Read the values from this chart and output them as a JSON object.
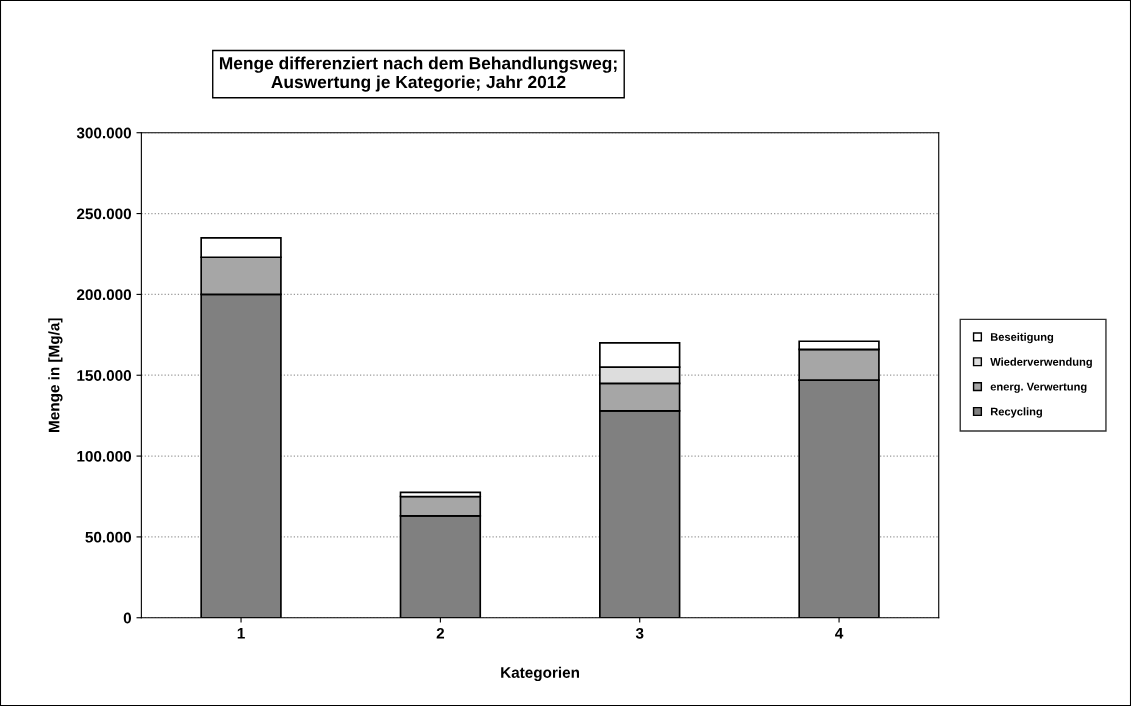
{
  "chart_data": {
    "type": "bar",
    "stacked": true,
    "title": "Menge differenziert nach dem Behandlungsweg;\nAuswertung je Kategorie; Jahr 2012",
    "xlabel": "Kategorien",
    "ylabel": "Menge in [Mg/a]",
    "categories": [
      "1",
      "2",
      "3",
      "4"
    ],
    "series": [
      {
        "name": "Recycling",
        "color": "#808080",
        "values": [
          200000,
          63000,
          128000,
          147000
        ]
      },
      {
        "name": "energ. Verwertung",
        "color": "#a6a6a6",
        "values": [
          23000,
          12000,
          17000,
          19000
        ]
      },
      {
        "name": "Wiederverwendung",
        "color": "#dddddd",
        "values": [
          null,
          null,
          10000,
          null
        ]
      },
      {
        "name": "Beseitigung",
        "color": "#ffffff",
        "values": [
          12000,
          2500,
          15000,
          5000
        ]
      }
    ],
    "ylim": [
      0,
      300000
    ],
    "yticks": [
      0,
      {
        "value": 50000,
        "label": "50.000"
      },
      {
        "value": 100000,
        "label": "100.000"
      },
      {
        "value": 150000,
        "label": "150.000"
      },
      {
        "value": 200000,
        "label": "200.000"
      },
      {
        "value": 250000,
        "label": "250.000"
      },
      {
        "value": 300000,
        "label": "300.000"
      }
    ],
    "grid": "y",
    "legend": "right"
  }
}
